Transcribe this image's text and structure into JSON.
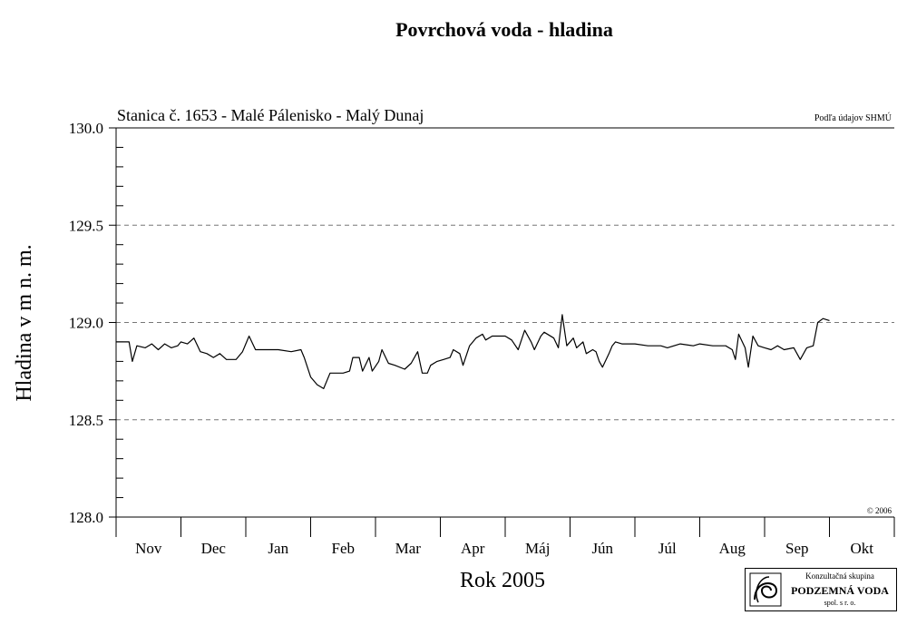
{
  "chart_data": {
    "type": "line",
    "title": "Povrchová voda - hladina",
    "subtitle": "Stanica č. 1653 - Malé Pálenisko - Malý Dunaj",
    "source_note": "Podľa údajov SHMÚ",
    "copyright": "© 2006",
    "xlabel": "Rok 2005",
    "ylabel": "Hladina v m n. m.",
    "ylim": [
      128.0,
      130.0
    ],
    "y_ticks": [
      "128.0",
      "128.5",
      "129.0",
      "129.5",
      "130.0"
    ],
    "y_grid_dashed": [
      128.5,
      129.0,
      129.5
    ],
    "month_labels": [
      "Nov",
      "Dec",
      "Jan",
      "Feb",
      "Mar",
      "Apr",
      "Máj",
      "Jún",
      "Júl",
      "Aug",
      "Sep",
      "Okt"
    ],
    "x_range_months": [
      0,
      12
    ],
    "series": [
      {
        "values": [
          [
            0.0,
            128.9
          ],
          [
            0.2,
            128.9
          ],
          [
            0.25,
            128.8
          ],
          [
            0.32,
            128.88
          ],
          [
            0.45,
            128.87
          ],
          [
            0.55,
            128.89
          ],
          [
            0.65,
            128.86
          ],
          [
            0.75,
            128.89
          ],
          [
            0.85,
            128.87
          ],
          [
            0.95,
            128.88
          ],
          [
            1.0,
            128.9
          ],
          [
            1.1,
            128.89
          ],
          [
            1.2,
            128.92
          ],
          [
            1.3,
            128.85
          ],
          [
            1.4,
            128.84
          ],
          [
            1.5,
            128.82
          ],
          [
            1.6,
            128.84
          ],
          [
            1.7,
            128.81
          ],
          [
            1.85,
            128.81
          ],
          [
            1.95,
            128.85
          ],
          [
            2.05,
            128.93
          ],
          [
            2.15,
            128.86
          ],
          [
            2.3,
            128.86
          ],
          [
            2.5,
            128.86
          ],
          [
            2.7,
            128.85
          ],
          [
            2.85,
            128.86
          ],
          [
            2.9,
            128.82
          ],
          [
            3.0,
            128.72
          ],
          [
            3.1,
            128.68
          ],
          [
            3.2,
            128.66
          ],
          [
            3.3,
            128.74
          ],
          [
            3.5,
            128.74
          ],
          [
            3.6,
            128.75
          ],
          [
            3.65,
            128.82
          ],
          [
            3.75,
            128.82
          ],
          [
            3.8,
            128.75
          ],
          [
            3.9,
            128.82
          ],
          [
            3.95,
            128.75
          ],
          [
            4.05,
            128.8
          ],
          [
            4.1,
            128.86
          ],
          [
            4.2,
            128.79
          ],
          [
            4.3,
            128.78
          ],
          [
            4.45,
            128.76
          ],
          [
            4.55,
            128.79
          ],
          [
            4.65,
            128.85
          ],
          [
            4.72,
            128.74
          ],
          [
            4.8,
            128.74
          ],
          [
            4.85,
            128.78
          ],
          [
            4.95,
            128.8
          ],
          [
            5.05,
            128.81
          ],
          [
            5.15,
            128.82
          ],
          [
            5.2,
            128.86
          ],
          [
            5.3,
            128.84
          ],
          [
            5.35,
            128.78
          ],
          [
            5.45,
            128.88
          ],
          [
            5.55,
            128.92
          ],
          [
            5.65,
            128.94
          ],
          [
            5.7,
            128.91
          ],
          [
            5.8,
            128.93
          ],
          [
            6.0,
            128.93
          ],
          [
            6.1,
            128.91
          ],
          [
            6.2,
            128.86
          ],
          [
            6.3,
            128.96
          ],
          [
            6.4,
            128.9
          ],
          [
            6.45,
            128.86
          ],
          [
            6.55,
            128.93
          ],
          [
            6.6,
            128.95
          ],
          [
            6.75,
            128.92
          ],
          [
            6.82,
            128.87
          ],
          [
            6.88,
            129.04
          ],
          [
            6.95,
            128.88
          ],
          [
            7.05,
            128.92
          ],
          [
            7.1,
            128.87
          ],
          [
            7.2,
            128.9
          ],
          [
            7.25,
            128.84
          ],
          [
            7.35,
            128.86
          ],
          [
            7.4,
            128.85
          ],
          [
            7.45,
            128.8
          ],
          [
            7.5,
            128.77
          ],
          [
            7.6,
            128.84
          ],
          [
            7.65,
            128.88
          ],
          [
            7.7,
            128.9
          ],
          [
            7.8,
            128.89
          ],
          [
            8.0,
            128.89
          ],
          [
            8.2,
            128.88
          ],
          [
            8.4,
            128.88
          ],
          [
            8.5,
            128.87
          ],
          [
            8.7,
            128.89
          ],
          [
            8.9,
            128.88
          ],
          [
            9.0,
            128.89
          ],
          [
            9.2,
            128.88
          ],
          [
            9.4,
            128.88
          ],
          [
            9.5,
            128.86
          ],
          [
            9.55,
            128.81
          ],
          [
            9.6,
            128.94
          ],
          [
            9.7,
            128.87
          ],
          [
            9.75,
            128.77
          ],
          [
            9.82,
            128.93
          ],
          [
            9.9,
            128.88
          ],
          [
            10.0,
            128.87
          ],
          [
            10.1,
            128.86
          ],
          [
            10.2,
            128.88
          ],
          [
            10.3,
            128.86
          ],
          [
            10.45,
            128.87
          ],
          [
            10.55,
            128.81
          ],
          [
            10.65,
            128.87
          ],
          [
            10.75,
            128.88
          ],
          [
            10.82,
            129.0
          ],
          [
            10.9,
            129.02
          ],
          [
            11.0,
            129.01
          ]
        ]
      }
    ]
  },
  "logo": {
    "line1": "Konzultačná skupina",
    "line2": "PODZEMNÁ VODA",
    "line3": "spol. s r. o."
  },
  "colors": {
    "line": "#000000",
    "grid": "#777777",
    "background": "#ffffff"
  }
}
